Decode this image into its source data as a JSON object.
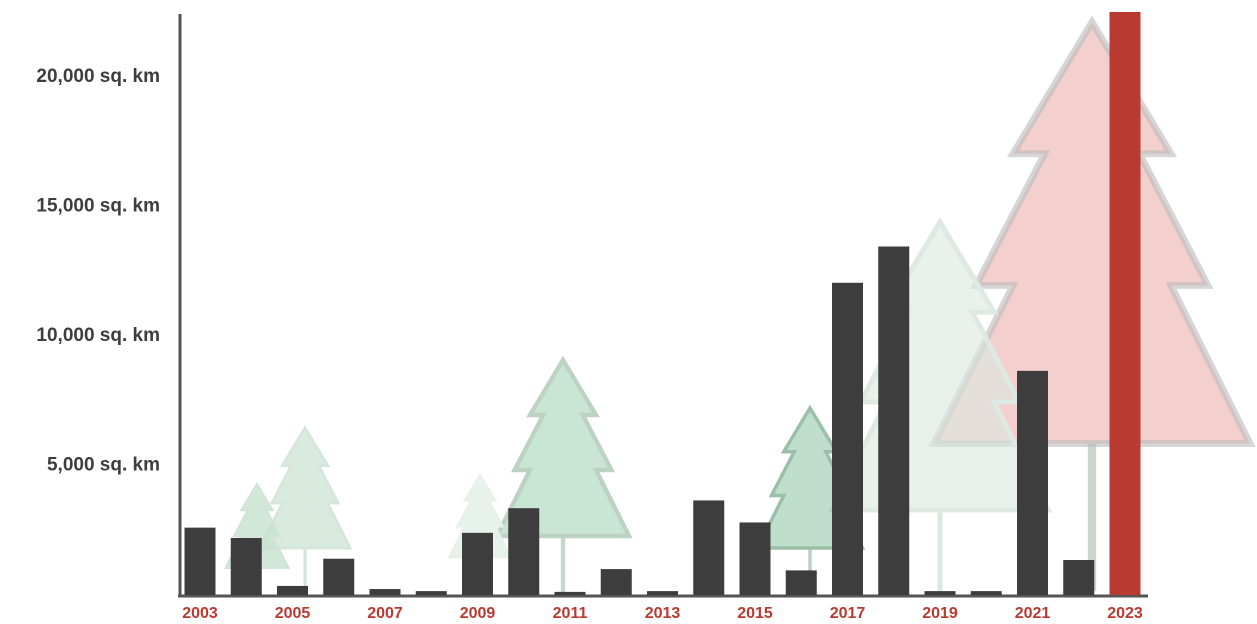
{
  "chart_data": {
    "type": "bar",
    "categories": [
      "2003",
      null,
      "2005",
      null,
      "2007",
      null,
      "2009",
      null,
      "2011",
      null,
      "2013",
      null,
      "2015",
      null,
      "2017",
      null,
      "2019",
      null,
      "2021",
      null,
      "2023"
    ],
    "values": [
      2600,
      2200,
      350,
      1400,
      230,
      150,
      2400,
      3350,
      120,
      1000,
      150,
      3650,
      2800,
      950,
      12050,
      13450,
      150,
      150,
      8650,
      1350,
      22500
    ],
    "colors": [
      "#3d3d3d",
      "#3d3d3d",
      "#3d3d3d",
      "#3d3d3d",
      "#3d3d3d",
      "#3d3d3d",
      "#3d3d3d",
      "#3d3d3d",
      "#3d3d3d",
      "#3d3d3d",
      "#3d3d3d",
      "#3d3d3d",
      "#3d3d3d",
      "#3d3d3d",
      "#3d3d3d",
      "#3d3d3d",
      "#3d3d3d",
      "#3d3d3d",
      "#3d3d3d",
      "#3d3d3d",
      "#b83a31"
    ],
    "ylim": [
      0,
      22500
    ],
    "yticks": [
      {
        "value": 5000,
        "label": "5,000 sq. km"
      },
      {
        "value": 10000,
        "label": "10,000 sq. km"
      },
      {
        "value": 15000,
        "label": "15,000 sq. km"
      },
      {
        "value": 20000,
        "label": "20,000 sq. km"
      }
    ],
    "grid": false
  }
}
